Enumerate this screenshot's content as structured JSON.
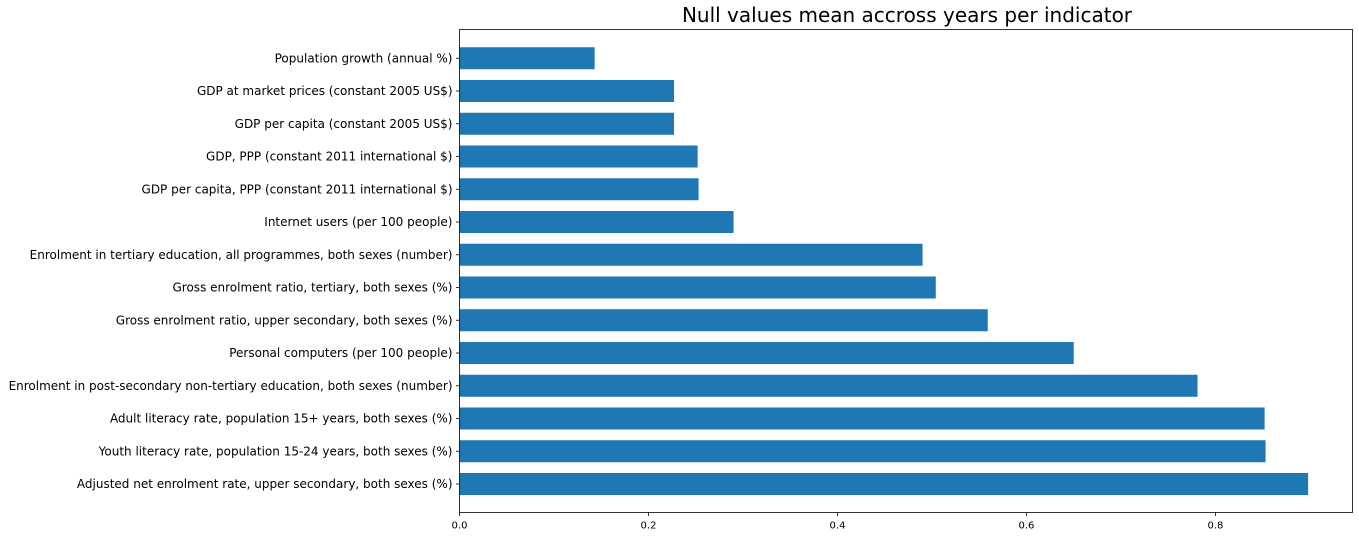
{
  "chart_data": {
    "type": "bar",
    "orientation": "horizontal",
    "title": "Null values mean accross years per indicator",
    "xlabel": "",
    "ylabel": "",
    "xlim": [
      0,
      0.945
    ],
    "x_ticks": [
      "0.0",
      "0.2",
      "0.4",
      "0.6",
      "0.8"
    ],
    "x_tick_values": [
      0,
      0.2,
      0.4,
      0.6,
      0.8
    ],
    "grid": false,
    "bar_color": "#1f77b4",
    "categories": [
      "Adjusted net enrolment rate, upper secondary, both sexes (%)",
      "Youth literacy rate, population 15-24 years, both sexes (%)",
      "Adult literacy rate, population 15+ years, both sexes (%)",
      "Enrolment in post-secondary non-tertiary education, both sexes (number)",
      "Personal computers (per 100 people)",
      "Gross enrolment ratio, upper secondary, both sexes (%)",
      "Gross enrolment ratio, tertiary, both sexes (%)",
      "Enrolment in tertiary education, all programmes, both sexes (number)",
      "Internet users (per 100 people)",
      "GDP per capita, PPP (constant 2011 international $)",
      "GDP, PPP (constant 2011 international $)",
      "GDP per capita (constant 2005 US$)",
      "GDP at market prices (constant 2005 US$)",
      "Population growth (annual %)"
    ],
    "values": [
      0.898,
      0.853,
      0.852,
      0.781,
      0.65,
      0.559,
      0.504,
      0.49,
      0.29,
      0.253,
      0.252,
      0.227,
      0.227,
      0.143
    ]
  }
}
